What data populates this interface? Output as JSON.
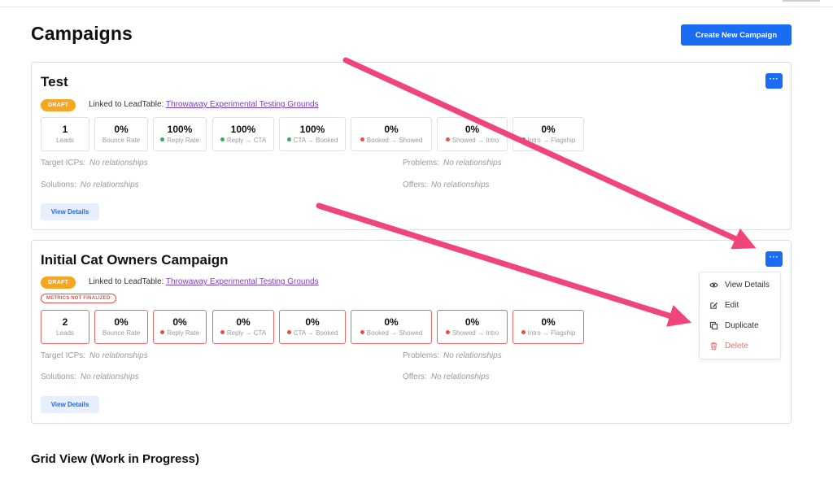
{
  "page": {
    "title": "Campaigns",
    "create_label": "Create New Campaign",
    "grid_title": "Grid View (Work in Progress)"
  },
  "campaigns": [
    {
      "title": "Test",
      "status": "DRAFT",
      "linked_prefix": "Linked to LeadTable:",
      "linked_name": "Throwaway Experimental Testing Grounds",
      "metrics_warning": "",
      "metrics": [
        {
          "value": "1",
          "label": "Leads",
          "dot": ""
        },
        {
          "value": "0%",
          "label": "Bounce Rate",
          "dot": ""
        },
        {
          "value": "100%",
          "label": "Reply Rate",
          "dot": "green"
        },
        {
          "value": "100%",
          "label": "Reply → CTA",
          "dot": "green"
        },
        {
          "value": "100%",
          "label": "CTA → Booked",
          "dot": "green"
        },
        {
          "value": "0%",
          "label": "Booked → Showed",
          "dot": "red"
        },
        {
          "value": "0%",
          "label": "Showed → Intro",
          "dot": "red"
        },
        {
          "value": "0%",
          "label": "Intro → Flagship",
          "dot": "red"
        }
      ],
      "target_icps_label": "Target ICPs:",
      "target_icps_value": "No relationships",
      "problems_label": "Problems:",
      "problems_value": "No relationships",
      "solutions_label": "Solutions:",
      "solutions_value": "No relationships",
      "offers_label": "Offers:",
      "offers_value": "No relationships",
      "view_details_label": "View Details",
      "more_label": "···"
    },
    {
      "title": "Initial Cat Owners Campaign",
      "status": "DRAFT",
      "linked_prefix": "Linked to LeadTable:",
      "linked_name": "Throwaway Experimental Testing Grounds",
      "metrics_warning": "METRICS NOT FINALIZED",
      "metrics": [
        {
          "value": "2",
          "label": "Leads",
          "dot": ""
        },
        {
          "value": "0%",
          "label": "Bounce Rate",
          "dot": ""
        },
        {
          "value": "0%",
          "label": "Reply Rate",
          "dot": "red"
        },
        {
          "value": "0%",
          "label": "Reply → CTA",
          "dot": "red"
        },
        {
          "value": "0%",
          "label": "CTA → Booked",
          "dot": "red"
        },
        {
          "value": "0%",
          "label": "Booked → Showed",
          "dot": "red"
        },
        {
          "value": "0%",
          "label": "Showed → Intro",
          "dot": "red"
        },
        {
          "value": "0%",
          "label": "Intro → Flagship",
          "dot": "red"
        }
      ],
      "target_icps_label": "Target ICPs:",
      "target_icps_value": "No relationships",
      "problems_label": "Problems:",
      "problems_value": "No relationships",
      "solutions_label": "Solutions:",
      "solutions_value": "No relationships",
      "offers_label": "Offers:",
      "offers_value": "No relationships",
      "view_details_label": "View Details",
      "more_label": "···"
    }
  ],
  "dropdown_menu": {
    "items": [
      {
        "label": "View Details",
        "icon": "eye-icon"
      },
      {
        "label": "Edit",
        "icon": "edit-icon"
      },
      {
        "label": "Duplicate",
        "icon": "duplicate-icon"
      },
      {
        "label": "Delete",
        "icon": "trash-icon"
      }
    ]
  },
  "colors": {
    "primary": "#1a6cf2",
    "draft": "#f5a623",
    "link": "#7a3fc4",
    "danger": "#e84c4c",
    "success": "#2bb35e",
    "annotation_arrow": "#f0457a"
  }
}
